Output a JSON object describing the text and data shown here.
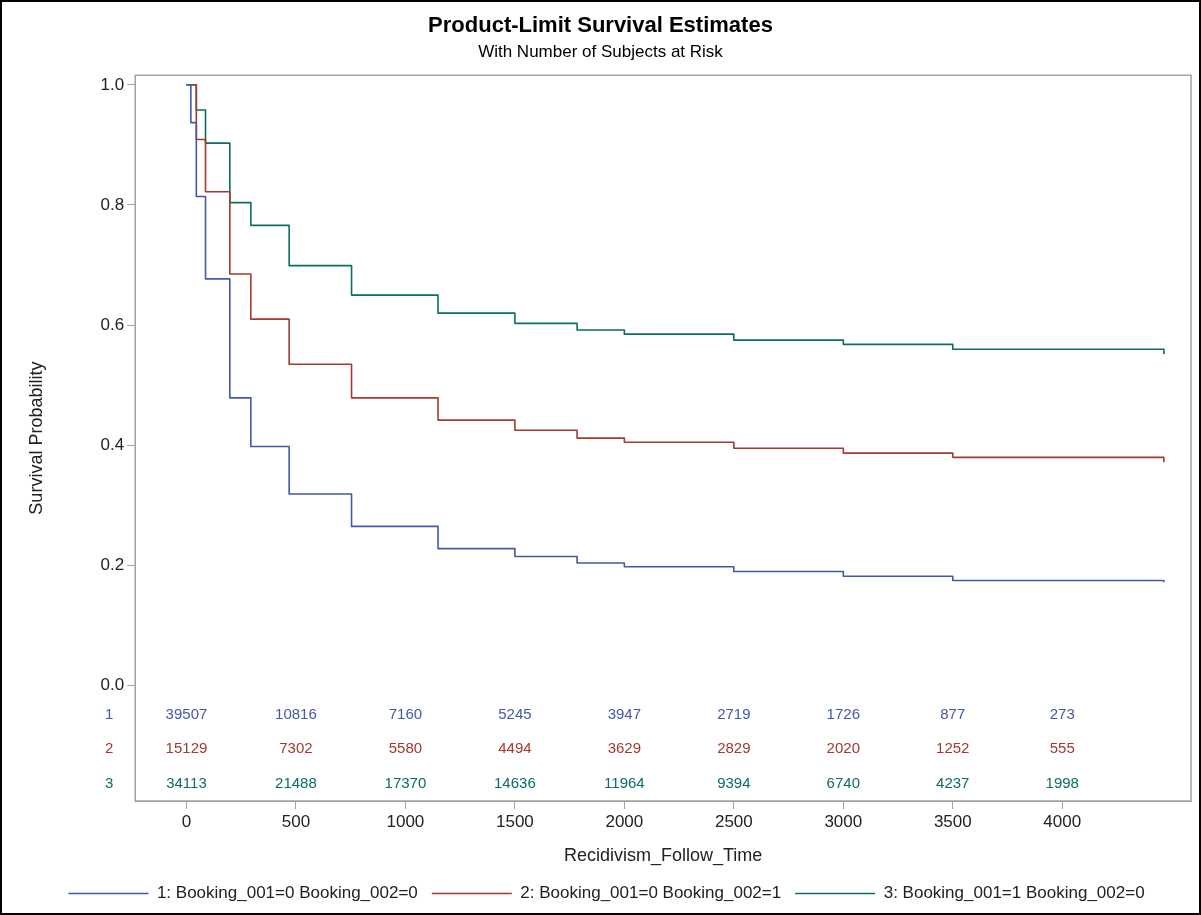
{
  "chart_data": {
    "type": "step",
    "title": "Product-Limit Survival Estimates",
    "subtitle": "With Number of Subjects at Risk",
    "xlabel": "Recidivism_Follow_Time",
    "ylabel": "Survival Probability",
    "xlim": [
      -234,
      4588
    ],
    "ylim": [
      -0.192,
      1.016
    ],
    "xticks": [
      0,
      500,
      1000,
      1500,
      2000,
      2500,
      3000,
      3500,
      4000
    ],
    "yticks": [
      {
        "value": 0,
        "label": "0.0"
      },
      {
        "value": 0.2,
        "label": "0.2"
      },
      {
        "value": 0.4,
        "label": "0.4"
      },
      {
        "value": 0.6,
        "label": "0.6"
      },
      {
        "value": 0.8,
        "label": "0.8"
      },
      {
        "value": 1,
        "label": "1.0"
      }
    ],
    "grid": false,
    "legend": "bottom",
    "marker": "none",
    "line_style": "solid",
    "series": [
      {
        "name": "1: Booking_001=0 Booking_002=0",
        "color": "#4458a8",
        "x": [
          0,
          20,
          45,
          87,
          198,
          294,
          469,
          754,
          1149,
          1500,
          1784,
          2000,
          2500,
          3000,
          3500,
          4464
        ],
        "values": [
          1,
          0.937,
          0.814,
          0.677,
          0.479,
          0.398,
          0.319,
          0.265,
          0.228,
          0.215,
          0.204,
          0.198,
          0.19,
          0.182,
          0.175,
          0.172
        ]
      },
      {
        "name": "2: Booking_001=0 Booking_002=1",
        "color": "#a23a2e",
        "x": [
          0,
          45,
          87,
          198,
          294,
          469,
          754,
          1149,
          1500,
          1784,
          2000,
          2500,
          3000,
          3500,
          4464
        ],
        "values": [
          1,
          0.909,
          0.822,
          0.685,
          0.61,
          0.535,
          0.479,
          0.442,
          0.425,
          0.412,
          0.405,
          0.395,
          0.387,
          0.38,
          0.372
        ]
      },
      {
        "name": "3: Booking_001=1 Booking_002=0",
        "color": "#0b6e63",
        "x": [
          0,
          45,
          87,
          198,
          294,
          469,
          754,
          1149,
          1500,
          1784,
          2000,
          2500,
          3000,
          3500,
          4464
        ],
        "values": [
          1,
          0.958,
          0.903,
          0.804,
          0.766,
          0.699,
          0.65,
          0.62,
          0.603,
          0.592,
          0.585,
          0.575,
          0.568,
          0.56,
          0.552
        ]
      }
    ],
    "annotations": [
      "1",
      "39507",
      "10816",
      "7160",
      "5245",
      "3947",
      "2719",
      "1726",
      "877",
      "273",
      "2",
      "15129",
      "7302",
      "5580",
      "4494",
      "3629",
      "2829",
      "2020",
      "1252",
      "555",
      "3",
      "34113",
      "21488",
      "17370",
      "14636",
      "11964",
      "9394",
      "6740",
      "4237",
      "1998"
    ]
  }
}
